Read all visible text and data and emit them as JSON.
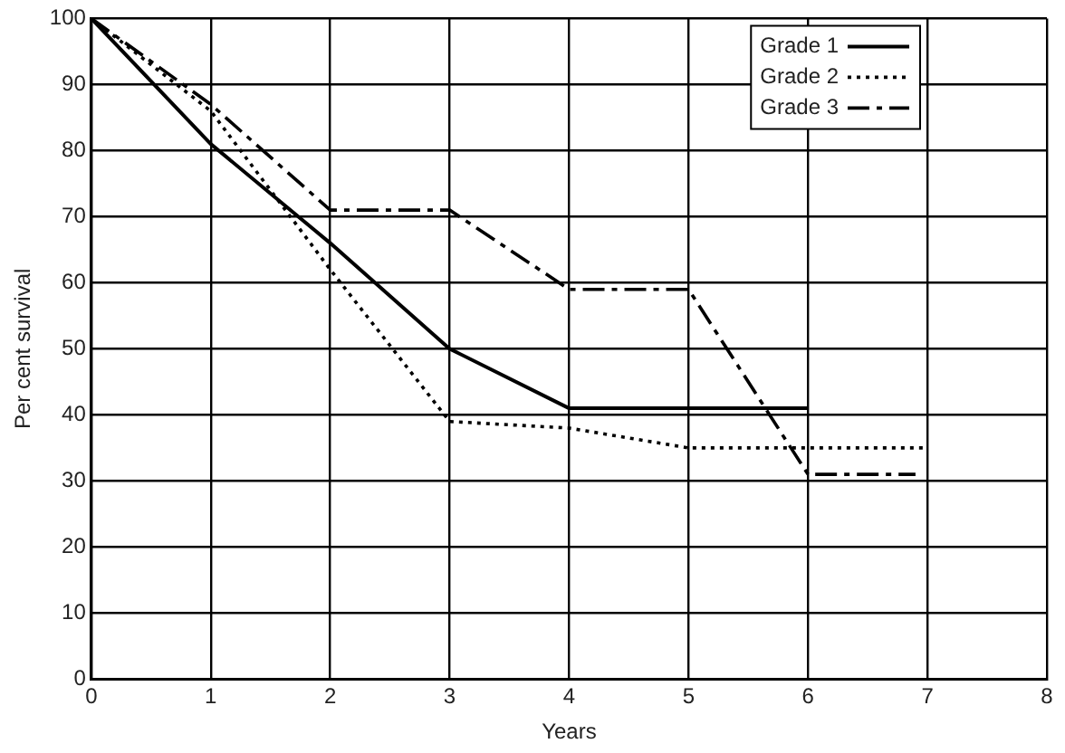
{
  "chart_data": {
    "type": "line",
    "xlabel": "Years",
    "ylabel": "Per cent survival",
    "xlim": [
      0,
      8
    ],
    "ylim": [
      0,
      100
    ],
    "xticks": [
      0,
      1,
      2,
      3,
      4,
      5,
      6,
      7,
      8
    ],
    "yticks": [
      0,
      10,
      20,
      30,
      40,
      50,
      60,
      70,
      80,
      90,
      100
    ],
    "grid": true,
    "legend": "top right",
    "marker": "none",
    "series": [
      {
        "name": "Grade 1",
        "color": "#000000",
        "line_style": "solid",
        "x": [
          0,
          1,
          2,
          3,
          4,
          5,
          6
        ],
        "values": [
          100,
          81,
          66,
          50,
          41,
          41,
          41
        ]
      },
      {
        "name": "Grade 2",
        "color": "#000000",
        "line_style": "dotted",
        "x": [
          0,
          1,
          2,
          3,
          4,
          5,
          6,
          7
        ],
        "values": [
          100,
          86,
          62,
          39,
          38,
          35,
          35,
          35
        ]
      },
      {
        "name": "Grade 3",
        "color": "#000000",
        "line_style": "dashed",
        "x": [
          0,
          1,
          2,
          3,
          4,
          5,
          6,
          6.9
        ],
        "values": [
          100,
          87,
          71,
          71,
          59,
          59,
          31,
          31
        ]
      }
    ]
  }
}
